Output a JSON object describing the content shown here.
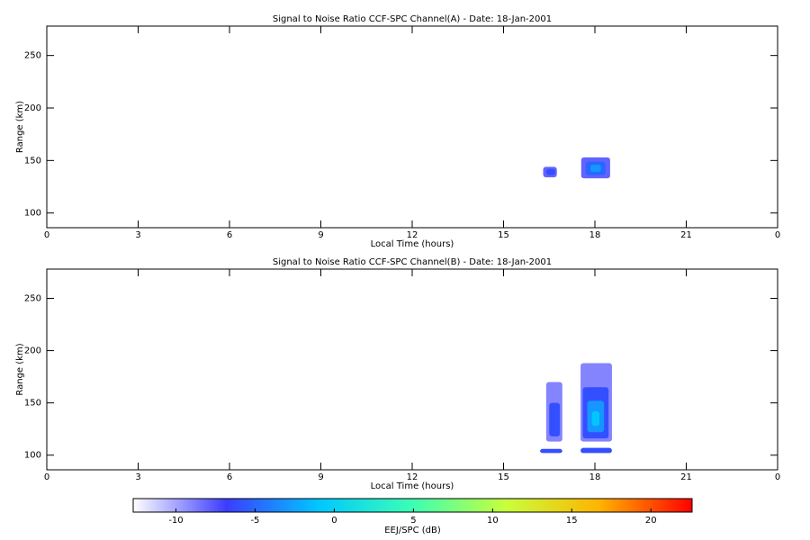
{
  "chart_data": [
    {
      "type": "rti",
      "title": "Signal to Noise Ratio CCF-SPC Channel(A) - Date: 18-Jan-2001",
      "xlabel": "Local Time (hours)",
      "ylabel": "Range (km)",
      "xlim": [
        0,
        24
      ],
      "xticks": [
        0,
        3,
        6,
        9,
        12,
        15,
        18,
        21,
        {
          "value": 24,
          "label": "0"
        }
      ],
      "ylim": [
        86,
        278
      ],
      "yticks": [
        100,
        150,
        200,
        250
      ],
      "cells": [
        {
          "x": [
            16.3,
            16.75
          ],
          "y": [
            134,
            144
          ],
          "value": -8
        },
        {
          "x": [
            16.4,
            16.7
          ],
          "y": [
            136,
            142
          ],
          "value": -6
        },
        {
          "x": [
            17.55,
            18.5
          ],
          "y": [
            133,
            153
          ],
          "value": -8
        },
        {
          "x": [
            17.7,
            18.35
          ],
          "y": [
            136,
            149
          ],
          "value": -5
        },
        {
          "x": [
            17.85,
            18.2
          ],
          "y": [
            139,
            146
          ],
          "value": -3
        }
      ]
    },
    {
      "type": "rti",
      "title": "Signal to Noise Ratio CCF-SPC Channel(B) - Date: 18-Jan-2001",
      "xlabel": "Local Time (hours)",
      "ylabel": "Range (km)",
      "xlim": [
        0,
        24
      ],
      "xticks": [
        0,
        3,
        6,
        9,
        12,
        15,
        18,
        21,
        {
          "value": 24,
          "label": "0"
        }
      ],
      "ylim": [
        86,
        278
      ],
      "yticks": [
        100,
        150,
        200,
        250
      ],
      "cells": [
        {
          "x": [
            16.4,
            16.93
          ],
          "y": [
            113,
            170
          ],
          "value": -9
        },
        {
          "x": [
            16.5,
            16.85
          ],
          "y": [
            118,
            150
          ],
          "value": -6
        },
        {
          "x": [
            16.2,
            16.93
          ],
          "y": [
            102,
            106
          ],
          "value": -6
        },
        {
          "x": [
            17.53,
            18.56
          ],
          "y": [
            113,
            188
          ],
          "value": -9
        },
        {
          "x": [
            17.6,
            18.45
          ],
          "y": [
            116,
            165
          ],
          "value": -6
        },
        {
          "x": [
            17.75,
            18.3
          ],
          "y": [
            122,
            152
          ],
          "value": -3
        },
        {
          "x": [
            17.9,
            18.15
          ],
          "y": [
            128,
            142
          ],
          "value": -1
        },
        {
          "x": [
            17.53,
            18.56
          ],
          "y": [
            102,
            107
          ],
          "value": -6
        }
      ]
    },
    {
      "type": "colorbar",
      "label": "EEJ/SPC (dB)",
      "lim": [
        -12.7,
        22.6
      ],
      "ticks": [
        -10,
        -5,
        0,
        5,
        10,
        15,
        20
      ],
      "colors": [
        "#ffffff",
        "#3c3cff",
        "#00c8ff",
        "#3cffb4",
        "#c8ff3c",
        "#ffb400",
        "#ff0000"
      ]
    }
  ]
}
